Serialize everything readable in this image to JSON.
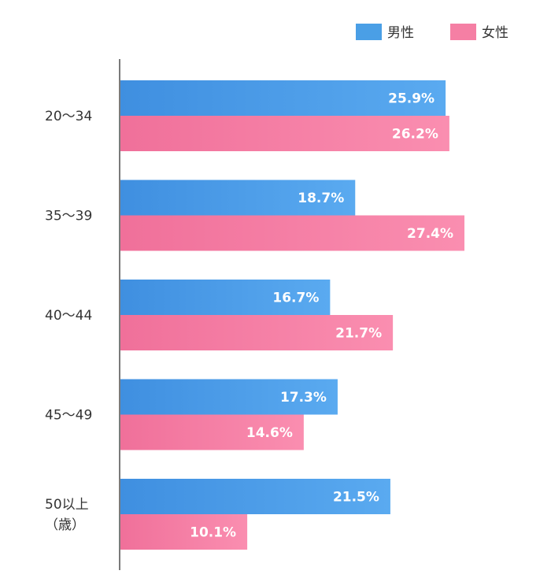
{
  "chart_data": {
    "type": "bar",
    "orientation": "horizontal",
    "categories": [
      "20〜34",
      "35〜39",
      "40〜44",
      "45〜49",
      "50以上（歳）"
    ],
    "category_lines": [
      [
        "20〜34"
      ],
      [
        "35〜39"
      ],
      [
        "40〜44"
      ],
      [
        "45〜49"
      ],
      [
        "50以上",
        "（歳）"
      ]
    ],
    "series": [
      {
        "name": "男性",
        "values": [
          25.9,
          18.7,
          16.7,
          17.3,
          21.5
        ],
        "color": "#4a9fe6"
      },
      {
        "name": "女性",
        "values": [
          26.2,
          27.4,
          21.7,
          14.6,
          10.1
        ],
        "color": "#f57fa4"
      }
    ],
    "unit": "%",
    "legend_position": "top-right",
    "grid": false
  }
}
